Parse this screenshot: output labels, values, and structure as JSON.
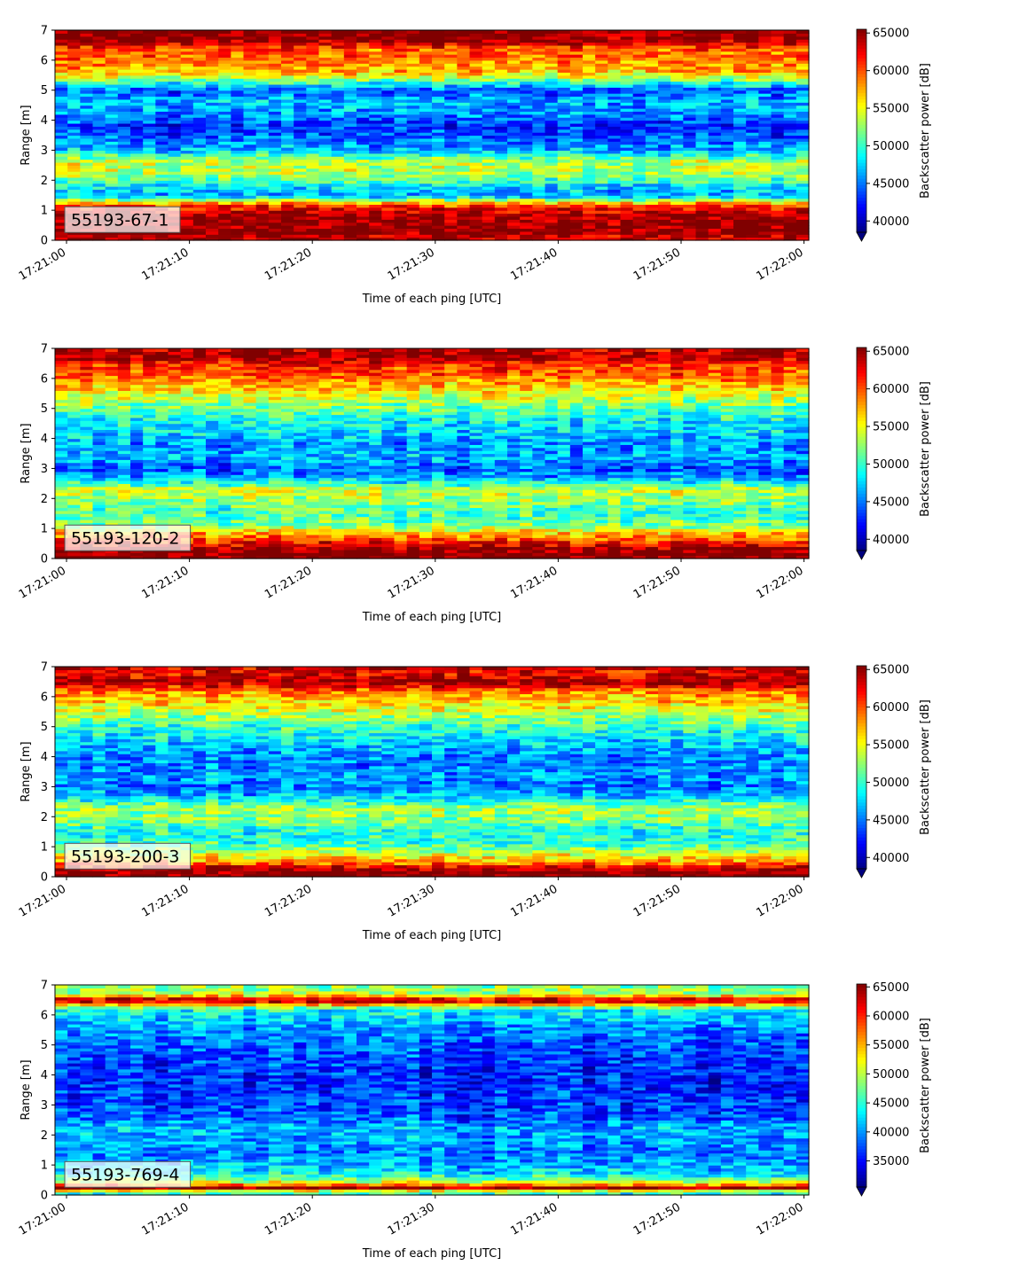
{
  "chart_data": [
    {
      "type": "heatmap",
      "panel_label": "55193-67-1",
      "xlabel": "Time of each ping [UTC]",
      "ylabel": "Range [m]",
      "x_ticks": [
        "17:21:00",
        "17:21:10",
        "17:21:20",
        "17:21:30",
        "17:21:40",
        "17:21:50",
        "17:22:00"
      ],
      "y_ticks": [
        0,
        1,
        2,
        3,
        4,
        5,
        6,
        7
      ],
      "ylim": [
        0,
        7
      ],
      "colorbar": {
        "label": "Backscatter power [dB]",
        "range": [
          38500,
          65500
        ],
        "ticks": [
          40000,
          45000,
          50000,
          55000,
          60000,
          65000
        ],
        "extend": "min",
        "colormap": "jet"
      },
      "range_profile": [
        {
          "range": 0.1,
          "value": 64000
        },
        {
          "range": 0.3,
          "value": 65500
        },
        {
          "range": 0.6,
          "value": 65000
        },
        {
          "range": 0.9,
          "value": 64500
        },
        {
          "range": 1.2,
          "value": 60000
        },
        {
          "range": 1.5,
          "value": 46000
        },
        {
          "range": 1.8,
          "value": 48000
        },
        {
          "range": 2.2,
          "value": 53000
        },
        {
          "range": 2.6,
          "value": 54000
        },
        {
          "range": 3.0,
          "value": 47000
        },
        {
          "range": 3.4,
          "value": 44500
        },
        {
          "range": 3.8,
          "value": 43000
        },
        {
          "range": 4.2,
          "value": 45500
        },
        {
          "range": 4.6,
          "value": 47000
        },
        {
          "range": 5.0,
          "value": 44000
        },
        {
          "range": 5.3,
          "value": 51000
        },
        {
          "range": 5.6,
          "value": 57000
        },
        {
          "range": 6.0,
          "value": 59000
        },
        {
          "range": 6.4,
          "value": 60000
        },
        {
          "range": 6.7,
          "value": 65500
        },
        {
          "range": 7.0,
          "value": 65500
        }
      ]
    },
    {
      "type": "heatmap",
      "panel_label": "55193-120-2",
      "xlabel": "Time of each ping [UTC]",
      "ylabel": "Range [m]",
      "x_ticks": [
        "17:21:00",
        "17:21:10",
        "17:21:20",
        "17:21:30",
        "17:21:40",
        "17:21:50",
        "17:22:00"
      ],
      "y_ticks": [
        0,
        1,
        2,
        3,
        4,
        5,
        6,
        7
      ],
      "ylim": [
        0,
        7
      ],
      "colorbar": {
        "label": "Backscatter power [dB]",
        "range": [
          38500,
          65500
        ],
        "ticks": [
          40000,
          45000,
          50000,
          55000,
          60000,
          65000
        ],
        "extend": "min",
        "colormap": "jet"
      },
      "range_profile": [
        {
          "range": 0.1,
          "value": 65500
        },
        {
          "range": 0.3,
          "value": 65500
        },
        {
          "range": 0.5,
          "value": 62000
        },
        {
          "range": 0.8,
          "value": 58000
        },
        {
          "range": 1.1,
          "value": 52000
        },
        {
          "range": 1.5,
          "value": 50000
        },
        {
          "range": 1.9,
          "value": 52000
        },
        {
          "range": 2.3,
          "value": 54000
        },
        {
          "range": 2.7,
          "value": 46000
        },
        {
          "range": 3.0,
          "value": 44000
        },
        {
          "range": 3.4,
          "value": 46500
        },
        {
          "range": 3.8,
          "value": 45500
        },
        {
          "range": 4.2,
          "value": 47500
        },
        {
          "range": 4.6,
          "value": 48500
        },
        {
          "range": 5.0,
          "value": 51000
        },
        {
          "range": 5.4,
          "value": 54000
        },
        {
          "range": 5.8,
          "value": 57000
        },
        {
          "range": 6.2,
          "value": 60000
        },
        {
          "range": 6.5,
          "value": 61500
        },
        {
          "range": 6.8,
          "value": 65000
        },
        {
          "range": 7.0,
          "value": 63000
        }
      ]
    },
    {
      "type": "heatmap",
      "panel_label": "55193-200-3",
      "xlabel": "Time of each ping [UTC]",
      "ylabel": "Range [m]",
      "x_ticks": [
        "17:21:00",
        "17:21:10",
        "17:21:20",
        "17:21:30",
        "17:21:40",
        "17:21:50",
        "17:22:00"
      ],
      "y_ticks": [
        0,
        1,
        2,
        3,
        4,
        5,
        6,
        7
      ],
      "ylim": [
        0,
        7
      ],
      "colorbar": {
        "label": "Backscatter power [dB]",
        "range": [
          38500,
          65500
        ],
        "ticks": [
          40000,
          45000,
          50000,
          55000,
          60000,
          65000
        ],
        "extend": "min",
        "colormap": "jet"
      },
      "range_profile": [
        {
          "range": 0.1,
          "value": 65500
        },
        {
          "range": 0.3,
          "value": 64000
        },
        {
          "range": 0.5,
          "value": 58000
        },
        {
          "range": 0.8,
          "value": 54000
        },
        {
          "range": 1.1,
          "value": 50000
        },
        {
          "range": 1.5,
          "value": 49000
        },
        {
          "range": 1.9,
          "value": 52000
        },
        {
          "range": 2.3,
          "value": 53000
        },
        {
          "range": 2.7,
          "value": 47000
        },
        {
          "range": 3.0,
          "value": 45000
        },
        {
          "range": 3.4,
          "value": 46000
        },
        {
          "range": 3.8,
          "value": 45000
        },
        {
          "range": 4.2,
          "value": 46000
        },
        {
          "range": 4.6,
          "value": 48000
        },
        {
          "range": 5.0,
          "value": 50000
        },
        {
          "range": 5.4,
          "value": 53000
        },
        {
          "range": 5.8,
          "value": 56000
        },
        {
          "range": 6.2,
          "value": 59000
        },
        {
          "range": 6.5,
          "value": 65000
        },
        {
          "range": 6.8,
          "value": 62000
        },
        {
          "range": 7.0,
          "value": 64000
        }
      ]
    },
    {
      "type": "heatmap",
      "panel_label": "55193-769-4",
      "xlabel": "Time of each ping [UTC]",
      "ylabel": "Range [m]",
      "x_ticks": [
        "17:21:00",
        "17:21:10",
        "17:21:20",
        "17:21:30",
        "17:21:40",
        "17:21:50",
        "17:22:00"
      ],
      "y_ticks": [
        0,
        1,
        2,
        3,
        4,
        5,
        6,
        7
      ],
      "ylim": [
        0,
        7
      ],
      "colorbar": {
        "label": "Backscatter power [dB]",
        "range": [
          30500,
          65500
        ],
        "ticks": [
          35000,
          40000,
          45000,
          50000,
          55000,
          60000,
          65000
        ],
        "extend": "min",
        "colormap": "jet"
      },
      "range_profile": [
        {
          "range": 0.1,
          "value": 45000
        },
        {
          "range": 0.25,
          "value": 65500
        },
        {
          "range": 0.4,
          "value": 52000
        },
        {
          "range": 0.7,
          "value": 43000
        },
        {
          "range": 1.0,
          "value": 41000
        },
        {
          "range": 1.4,
          "value": 39000
        },
        {
          "range": 1.8,
          "value": 40000
        },
        {
          "range": 2.2,
          "value": 41000
        },
        {
          "range": 2.6,
          "value": 38000
        },
        {
          "range": 3.0,
          "value": 37000
        },
        {
          "range": 3.4,
          "value": 36500
        },
        {
          "range": 3.8,
          "value": 36000
        },
        {
          "range": 4.2,
          "value": 36500
        },
        {
          "range": 4.6,
          "value": 37000
        },
        {
          "range": 5.0,
          "value": 38000
        },
        {
          "range": 5.4,
          "value": 39000
        },
        {
          "range": 5.8,
          "value": 41000
        },
        {
          "range": 6.2,
          "value": 44000
        },
        {
          "range": 6.5,
          "value": 65500
        },
        {
          "range": 6.7,
          "value": 50000
        },
        {
          "range": 7.0,
          "value": 48000
        }
      ]
    }
  ]
}
